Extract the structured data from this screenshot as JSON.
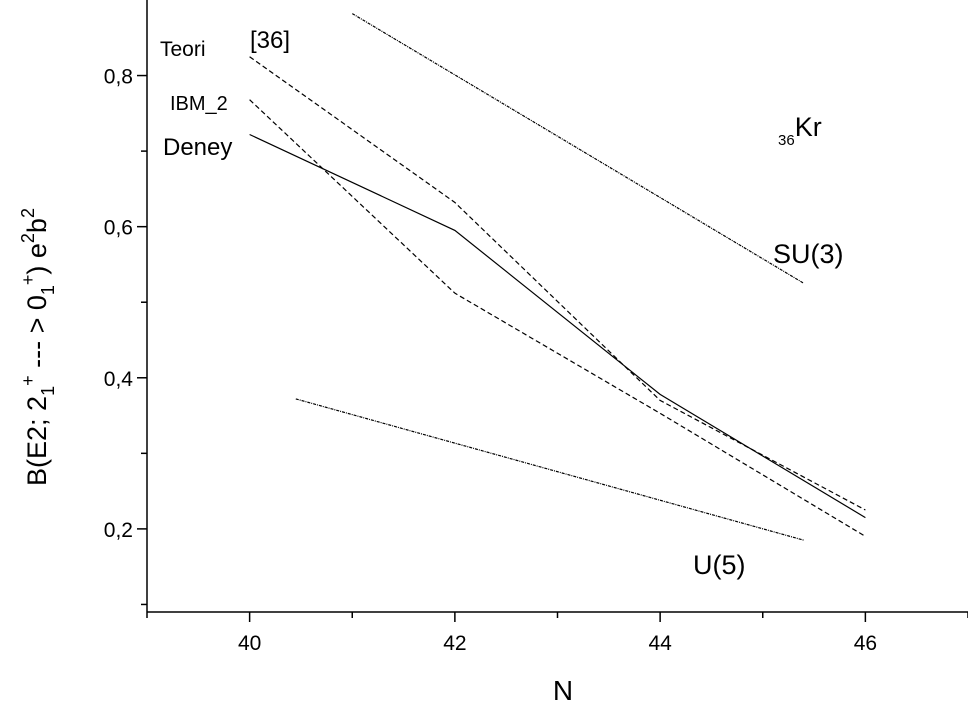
{
  "chart_data": {
    "type": "line",
    "xlabel": "N",
    "ylabel": {
      "main": "B(E2; 2",
      "sub1": "1",
      "sup1": "+",
      "mid": " --- > 0",
      "sub2": "1",
      "sup2": "+",
      "close": ") e",
      "sup3": "2",
      "b": "b",
      "sup4": "2"
    },
    "xlim": [
      39,
      47
    ],
    "ylim": [
      0.09,
      0.9
    ],
    "xticks": [
      "40",
      "42",
      "44",
      "46"
    ],
    "yticks": [
      "0,2",
      "0,4",
      "0,6",
      "0,8"
    ],
    "nucleus": {
      "sub": "36",
      "symbol": "Kr"
    },
    "series": [
      {
        "name": "Deney",
        "style": "solid",
        "x": [
          40,
          42,
          44,
          46
        ],
        "y": [
          0.722,
          0.595,
          0.378,
          0.215
        ]
      },
      {
        "name": "Teori",
        "style": "dashed",
        "x": [
          40,
          42,
          44,
          46
        ],
        "y": [
          0.825,
          0.632,
          0.37,
          0.225
        ]
      },
      {
        "name": "IBM_2",
        "style": "dashed",
        "x": [
          40,
          42,
          44,
          46
        ],
        "y": [
          0.768,
          0.512,
          0.353,
          0.19
        ]
      },
      {
        "name": "SU(3)",
        "style": "dashdot",
        "x": [
          41.0,
          45.4
        ],
        "y": [
          0.882,
          0.525
        ]
      },
      {
        "name": "U(5)",
        "style": "dashdot",
        "x": [
          40.45,
          45.4
        ],
        "y": [
          0.372,
          0.185
        ]
      }
    ],
    "annotations": [
      "Teori",
      "[36]",
      "IBM_2",
      "Deney",
      "SU(3)",
      "U(5)"
    ],
    "grid": false
  }
}
